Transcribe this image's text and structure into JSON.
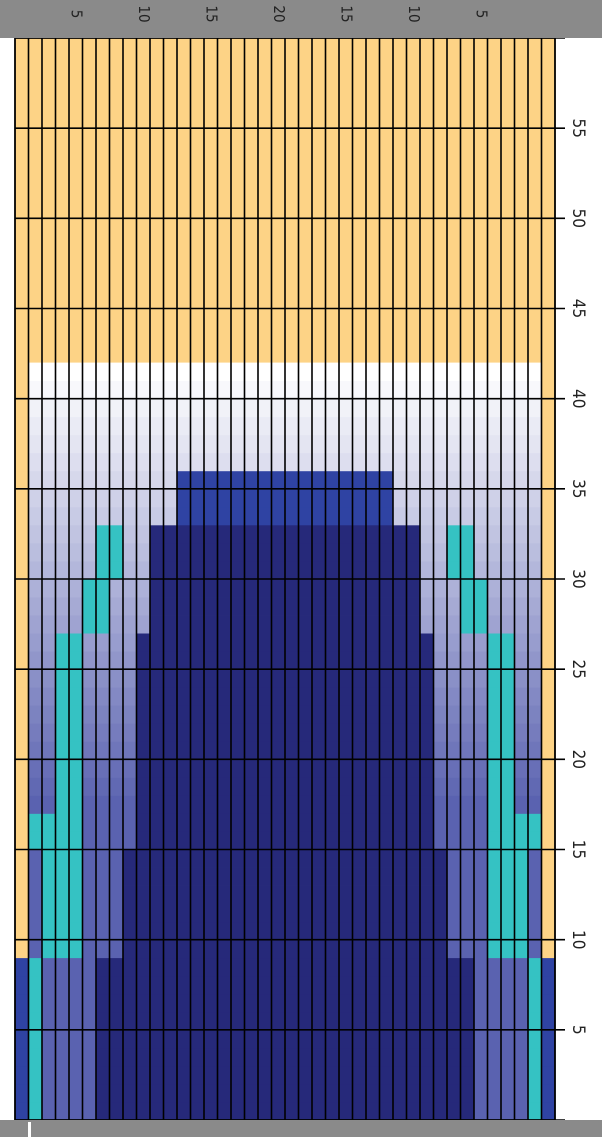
{
  "grid": {
    "rows": 60,
    "cols": 40,
    "row_labels": [
      "5",
      "10",
      "15",
      "20",
      "25",
      "30",
      "35",
      "40",
      "45",
      "50",
      "55"
    ],
    "col_labels": [
      "5",
      "10",
      "15",
      "20",
      "15",
      "10",
      "5"
    ],
    "colors": {
      "background": "#fdd386",
      "grid_line": "#000000",
      "header": "#8a8a8a",
      "header_text": "#222222",
      "navy": "#26297a",
      "cobalt": "#2f43a3",
      "teal": "#35c2c3",
      "mid_blue": "#5a62b0"
    },
    "counts_by_row": [
      {
        "rows": [
          1,
          8
        ],
        "counts": [
          1,
          1,
          1,
          1,
          1,
          28,
          1,
          1,
          1,
          1,
          1
        ]
      },
      {
        "rows": [
          9,
          9
        ],
        "counts": [
          1,
          1,
          1,
          1,
          28,
          1,
          1,
          1,
          1,
          1
        ]
      },
      {
        "rows": [
          10,
          15
        ],
        "counts": [
          1,
          2,
          3,
          24,
          3,
          2,
          1
        ]
      },
      {
        "rows": [
          16,
          17
        ],
        "counts": [
          1,
          1,
          2,
          2,
          22,
          2,
          2,
          1,
          1
        ]
      },
      {
        "rows": [
          18,
          26
        ],
        "counts": [
          1,
          2,
          1,
          2,
          22,
          2,
          1,
          2,
          1
        ]
      },
      {
        "rows": [
          27,
          27
        ],
        "counts": [
          1,
          2,
          1,
          2,
          22,
          2,
          1,
          2,
          1
        ]
      },
      {
        "rows": [
          28,
          30
        ],
        "counts": [
          1,
          2,
          2,
          20,
          2,
          2,
          1
        ]
      },
      {
        "rows": [
          31,
          33
        ],
        "counts": [
          1,
          2,
          2,
          20,
          2,
          2,
          1
        ]
      },
      {
        "rows": [
          34,
          36
        ],
        "counts": [
          1,
          3,
          16,
          3,
          1
        ]
      },
      {
        "rows": [
          37,
          42
        ],
        "counts": [
          1,
          38,
          1
        ]
      },
      {
        "rows": [
          43,
          60
        ],
        "counts": [
          40
        ]
      }
    ]
  }
}
